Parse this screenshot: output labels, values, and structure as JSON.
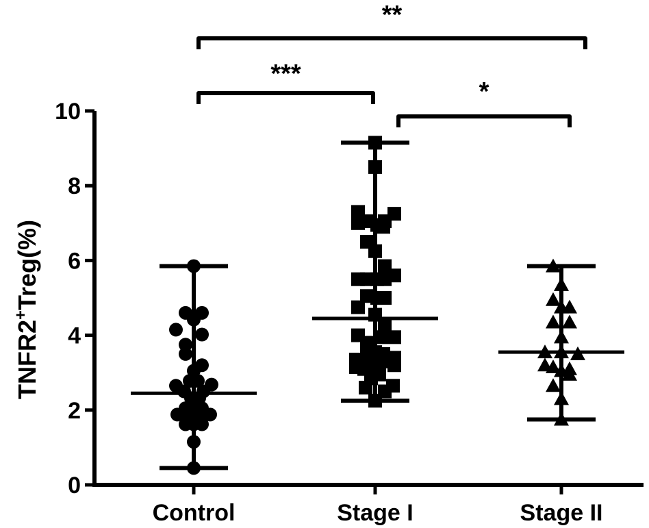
{
  "chart_data": {
    "type": "scatter",
    "title": "",
    "xlabel": "",
    "ylabel": {
      "main": "TNFR2",
      "superscript": "+",
      "suffix": "Treg(%)"
    },
    "ylim": [
      0,
      10
    ],
    "yticks": [
      "0",
      "2",
      "4",
      "6",
      "8",
      "10"
    ],
    "categories": [
      "Control",
      "Stage I",
      "Stage II"
    ],
    "series": [
      {
        "category": "Control",
        "marker": "circle",
        "mean": 2.45,
        "range": [
          0.45,
          5.85
        ],
        "points": [
          [
            0.0,
            5.85
          ],
          [
            -0.12,
            4.6
          ],
          [
            0.0,
            4.42
          ],
          [
            0.12,
            4.6
          ],
          [
            -0.26,
            4.15
          ],
          [
            0.12,
            4.02
          ],
          [
            -0.12,
            3.75
          ],
          [
            -0.12,
            3.5
          ],
          [
            0.12,
            3.2
          ],
          [
            0.0,
            3.05
          ],
          [
            -0.06,
            2.78
          ],
          [
            0.06,
            2.78
          ],
          [
            -0.26,
            2.65
          ],
          [
            0.26,
            2.68
          ],
          [
            -0.14,
            2.5
          ],
          [
            0.14,
            2.5
          ],
          [
            -0.04,
            2.32
          ],
          [
            0.08,
            2.32
          ],
          [
            -0.12,
            2.05
          ],
          [
            0.0,
            2.0
          ],
          [
            0.12,
            2.05
          ],
          [
            -0.24,
            1.88
          ],
          [
            0.24,
            1.88
          ],
          [
            -0.06,
            1.85
          ],
          [
            0.06,
            1.85
          ],
          [
            -0.12,
            1.62
          ],
          [
            0.0,
            1.62
          ],
          [
            0.12,
            1.62
          ],
          [
            0.0,
            1.15
          ],
          [
            0.0,
            0.45
          ]
        ]
      },
      {
        "category": "Stage I",
        "marker": "square",
        "mean": 4.45,
        "range": [
          2.25,
          9.15
        ],
        "points": [
          [
            0.0,
            9.15
          ],
          [
            0.0,
            8.5
          ],
          [
            -0.25,
            7.3
          ],
          [
            -0.12,
            7.05
          ],
          [
            0.03,
            6.95
          ],
          [
            0.14,
            7.05
          ],
          [
            0.28,
            7.25
          ],
          [
            -0.25,
            7.0
          ],
          [
            0.12,
            6.9
          ],
          [
            -0.12,
            6.5
          ],
          [
            0.0,
            6.25
          ],
          [
            0.14,
            5.85
          ],
          [
            -0.25,
            5.5
          ],
          [
            -0.12,
            5.5
          ],
          [
            0.03,
            5.5
          ],
          [
            0.14,
            5.5
          ],
          [
            0.28,
            5.6
          ],
          [
            -0.12,
            5.05
          ],
          [
            0.03,
            5.0
          ],
          [
            0.14,
            5.0
          ],
          [
            -0.25,
            4.75
          ],
          [
            0.0,
            4.55
          ],
          [
            0.14,
            4.25
          ],
          [
            -0.25,
            4.0
          ],
          [
            -0.12,
            3.8
          ],
          [
            0.08,
            3.95
          ],
          [
            0.28,
            3.95
          ],
          [
            -0.12,
            3.55
          ],
          [
            0.0,
            3.55
          ],
          [
            0.12,
            3.5
          ],
          [
            0.28,
            3.4
          ],
          [
            -0.28,
            3.35
          ],
          [
            -0.16,
            3.3
          ],
          [
            -0.05,
            3.25
          ],
          [
            0.06,
            3.25
          ],
          [
            0.18,
            3.3
          ],
          [
            0.28,
            3.2
          ],
          [
            -0.28,
            3.15
          ],
          [
            -0.16,
            3.1
          ],
          [
            -0.05,
            3.1
          ],
          [
            0.06,
            3.1
          ],
          [
            -0.06,
            2.85
          ],
          [
            0.06,
            2.95
          ],
          [
            0.26,
            2.65
          ],
          [
            -0.14,
            2.6
          ],
          [
            0.14,
            2.5
          ],
          [
            0.0,
            2.25
          ]
        ]
      },
      {
        "category": "Stage II",
        "marker": "triangle",
        "mean": 3.55,
        "range": [
          1.75,
          5.85
        ],
        "points": [
          [
            -0.12,
            5.85
          ],
          [
            0.0,
            5.35
          ],
          [
            -0.12,
            4.95
          ],
          [
            0.0,
            4.75
          ],
          [
            0.12,
            4.75
          ],
          [
            -0.12,
            4.35
          ],
          [
            0.12,
            4.35
          ],
          [
            0.0,
            3.95
          ],
          [
            -0.24,
            3.55
          ],
          [
            0.0,
            3.55
          ],
          [
            0.24,
            3.5
          ],
          [
            -0.24,
            3.2
          ],
          [
            -0.12,
            3.15
          ],
          [
            0.12,
            3.1
          ],
          [
            0.0,
            3.05
          ],
          [
            0.12,
            2.95
          ],
          [
            -0.12,
            2.65
          ],
          [
            0.0,
            2.3
          ],
          [
            0.0,
            1.75
          ]
        ]
      }
    ],
    "significance": [
      {
        "from": "Control",
        "to": "Stage II",
        "label": "**"
      },
      {
        "from": "Control",
        "to": "Stage I",
        "label": "***"
      },
      {
        "from": "Stage I",
        "to": "Stage II",
        "label": "*"
      }
    ]
  }
}
